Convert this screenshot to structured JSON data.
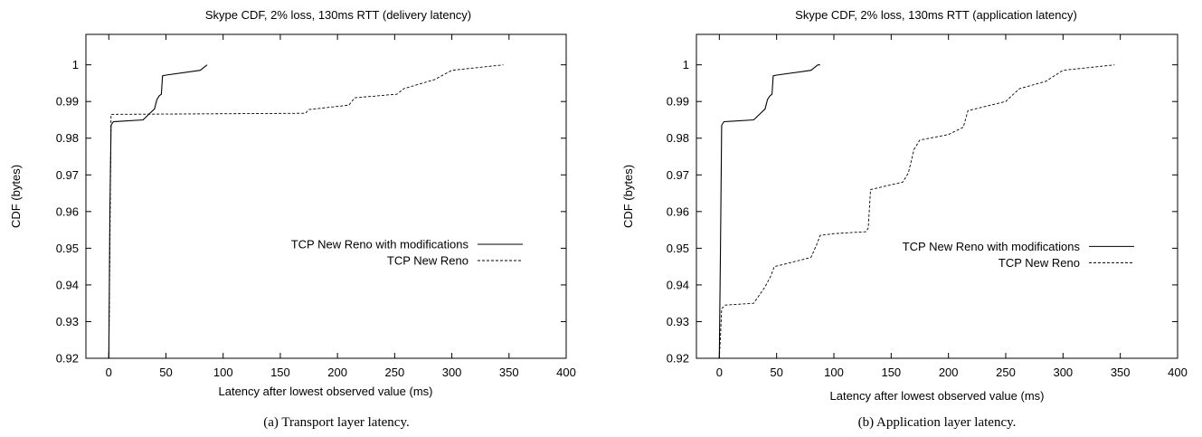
{
  "chart_data": [
    {
      "type": "line",
      "title": "Skype CDF, 2% loss, 130ms RTT (delivery latency)",
      "xlabel": "Latency after lowest observed value (ms)",
      "ylabel": "CDF (bytes)",
      "xlim": [
        -20,
        400
      ],
      "ylim": [
        0.92,
        1.0083
      ],
      "x_ticks": [
        "0",
        "50",
        "100",
        "150",
        "200",
        "250",
        "300",
        "350",
        "400"
      ],
      "y_ticks": [
        "0.92",
        "0.93",
        "0.94",
        "0.95",
        "0.96",
        "0.97",
        "0.98",
        "0.99",
        "1"
      ],
      "legend_position": "center-right",
      "caption": "(a) Transport layer latency.",
      "series": [
        {
          "name": "TCP New Reno with modifications",
          "style": "solid",
          "points": [
            [
              0,
              0.92
            ],
            [
              1,
              0.96
            ],
            [
              2,
              0.9835
            ],
            [
              4,
              0.9845
            ],
            [
              10,
              0.9846
            ],
            [
              30,
              0.985
            ],
            [
              35,
              0.9865
            ],
            [
              40,
              0.988
            ],
            [
              42,
              0.9905
            ],
            [
              44,
              0.9915
            ],
            [
              46,
              0.992
            ],
            [
              47,
              0.997
            ],
            [
              50,
              0.9972
            ],
            [
              80,
              0.9985
            ],
            [
              86,
              1.0
            ]
          ]
        },
        {
          "name": "TCP New Reno",
          "style": "dashed",
          "points": [
            [
              0,
              0.92
            ],
            [
              1,
              0.95
            ],
            [
              2,
              0.9865
            ],
            [
              172,
              0.9868
            ],
            [
              175,
              0.9878
            ],
            [
              210,
              0.989
            ],
            [
              215,
              0.991
            ],
            [
              252,
              0.992
            ],
            [
              258,
              0.9935
            ],
            [
              285,
              0.996
            ],
            [
              300,
              0.9985
            ],
            [
              345,
              1.0
            ]
          ]
        }
      ]
    },
    {
      "type": "line",
      "title": "Skype CDF, 2% loss, 130ms RTT (application latency)",
      "xlabel": "Latency after lowest observed value (ms)",
      "ylabel": "CDF (bytes)",
      "xlim": [
        -20,
        400
      ],
      "ylim": [
        0.92,
        1.0083
      ],
      "x_ticks": [
        "0",
        "50",
        "100",
        "150",
        "200",
        "250",
        "300",
        "350",
        "400"
      ],
      "y_ticks": [
        "0.92",
        "0.93",
        "0.94",
        "0.95",
        "0.96",
        "0.97",
        "0.98",
        "0.99",
        "1"
      ],
      "legend_position": "center-right",
      "caption": "(b) Application layer latency.",
      "series": [
        {
          "name": "TCP New Reno with modifications",
          "style": "solid",
          "points": [
            [
              0,
              0.92
            ],
            [
              1,
              0.95
            ],
            [
              2,
              0.9835
            ],
            [
              4,
              0.9845
            ],
            [
              10,
              0.9846
            ],
            [
              30,
              0.985
            ],
            [
              35,
              0.9865
            ],
            [
              40,
              0.988
            ],
            [
              42,
              0.9905
            ],
            [
              44,
              0.9915
            ],
            [
              46,
              0.992
            ],
            [
              47,
              0.997
            ],
            [
              50,
              0.9972
            ],
            [
              80,
              0.9985
            ],
            [
              86,
              1.0
            ],
            [
              88,
              1.0
            ]
          ]
        },
        {
          "name": "TCP New Reno",
          "style": "dashed",
          "points": [
            [
              0,
              0.92
            ],
            [
              1,
              0.926
            ],
            [
              2,
              0.9335
            ],
            [
              5,
              0.9345
            ],
            [
              30,
              0.935
            ],
            [
              40,
              0.9395
            ],
            [
              45,
              0.9425
            ],
            [
              48,
              0.945
            ],
            [
              55,
              0.9455
            ],
            [
              80,
              0.9475
            ],
            [
              85,
              0.951
            ],
            [
              88,
              0.9535
            ],
            [
              100,
              0.954
            ],
            [
              128,
              0.9545
            ],
            [
              130,
              0.9555
            ],
            [
              132,
              0.966
            ],
            [
              160,
              0.968
            ],
            [
              165,
              0.9705
            ],
            [
              170,
              0.977
            ],
            [
              175,
              0.9795
            ],
            [
              200,
              0.981
            ],
            [
              213,
              0.983
            ],
            [
              217,
              0.9875
            ],
            [
              250,
              0.99
            ],
            [
              255,
              0.9915
            ],
            [
              262,
              0.9935
            ],
            [
              285,
              0.9955
            ],
            [
              300,
              0.9985
            ],
            [
              345,
              1.0
            ]
          ]
        }
      ]
    }
  ]
}
